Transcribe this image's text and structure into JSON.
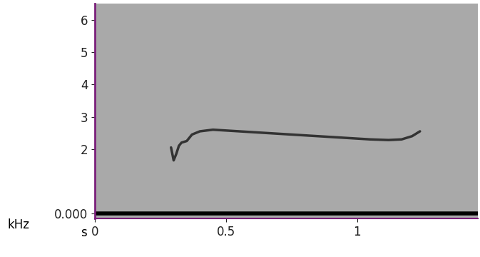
{
  "chart_data": {
    "type": "line",
    "x_label": "s",
    "y_label": "kHz",
    "x": [
      0.29,
      0.3,
      0.31,
      0.32,
      0.33,
      0.35,
      0.37,
      0.4,
      0.45,
      0.55,
      0.65,
      0.75,
      0.85,
      0.95,
      1.05,
      1.12,
      1.17,
      1.21,
      1.24
    ],
    "values": [
      2.05,
      1.65,
      1.85,
      2.1,
      2.2,
      2.25,
      2.45,
      2.55,
      2.6,
      2.55,
      2.5,
      2.45,
      2.4,
      2.35,
      2.3,
      2.28,
      2.3,
      2.4,
      2.55
    ],
    "color": "#333333",
    "xlim": [
      0,
      1.46
    ],
    "ylim": [
      -0.15,
      6.5
    ],
    "xticks": [
      0,
      0.5,
      1
    ],
    "yticks": [
      {
        "value": 0,
        "label": "0.000"
      },
      2,
      3,
      4,
      5,
      6
    ],
    "grid": false
  }
}
